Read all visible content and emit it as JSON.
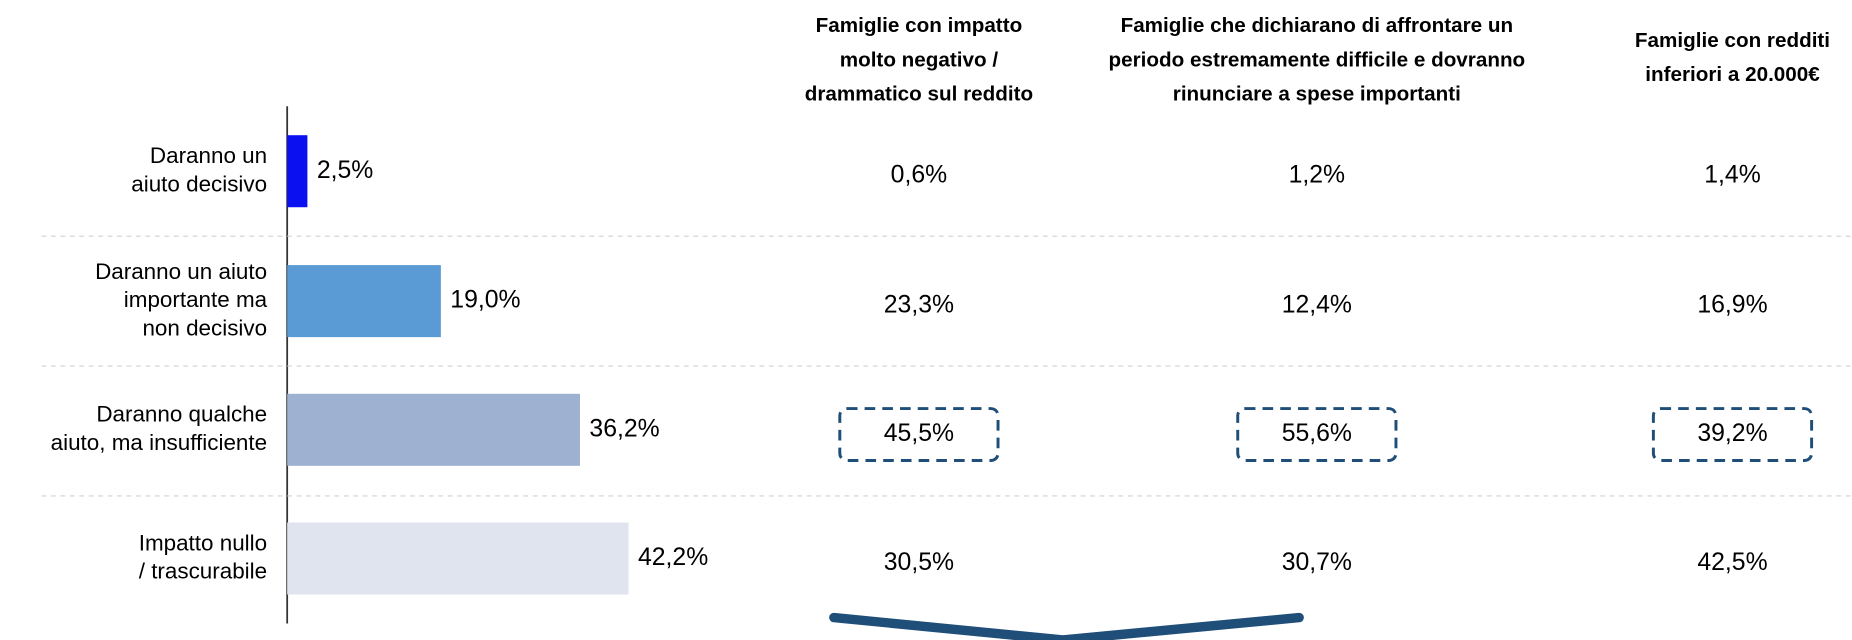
{
  "chart_data": {
    "type": "bar",
    "categories": [
      "Daranno un\naiuto decisivo",
      "Daranno un aiuto\nimportante ma\nnon decisivo",
      "Daranno qualche\naiuto, ma insufficiente",
      "Impatto nullo\n/ trascurabile"
    ],
    "values": [
      2.5,
      19.0,
      36.2,
      42.2
    ],
    "value_labels": [
      "2,5%",
      "19,0%",
      "36,2%",
      "42,2%"
    ],
    "colors": [
      "#0a10f0",
      "#5b9bd5",
      "#9fb1d0",
      "#dfe4ef"
    ]
  },
  "table": {
    "highlight_row": 2,
    "columns": [
      {
        "header": "Famiglie con impatto\nmolto negativo /\ndrammatico sul reddito",
        "cells": [
          "0,6%",
          "23,3%",
          "45,5%",
          "30,5%"
        ]
      },
      {
        "header": "Famiglie che dichiarano di affrontare un\nperiodo estremamente difficile e dovranno\nrinunciare a spese importanti",
        "cells": [
          "1,2%",
          "12,4%",
          "55,6%",
          "30,7%"
        ]
      },
      {
        "header": "Famiglie con redditi\ninferiori a 20.000€",
        "cells": [
          "1,4%",
          "16,9%",
          "39,2%",
          "42,5%"
        ]
      }
    ]
  }
}
